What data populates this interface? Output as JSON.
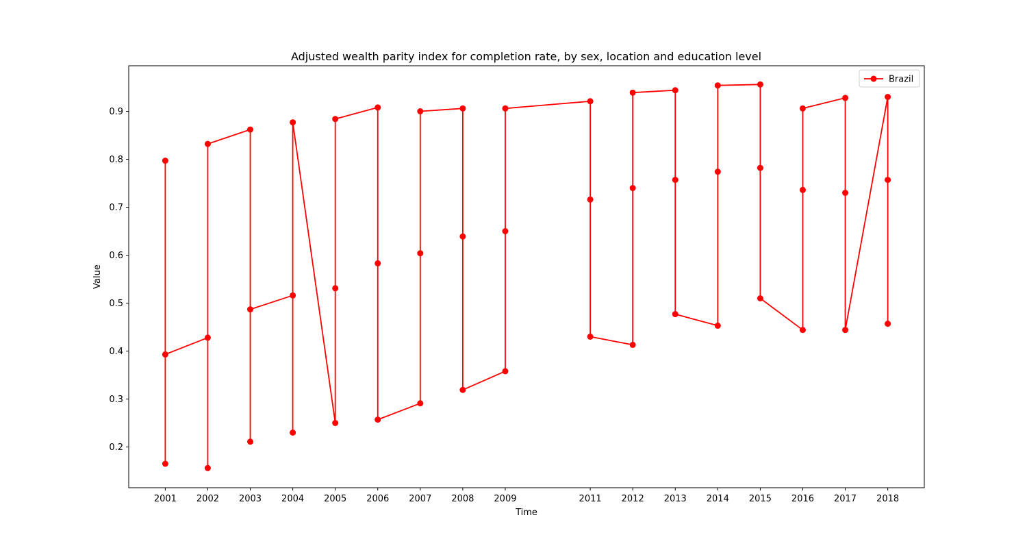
{
  "chart_data": {
    "type": "line",
    "title": "Adjusted wealth parity index for completion rate, by sex, location and education level",
    "xlabel": "Time",
    "ylabel": "Value",
    "xlim": [
      2000.14,
      2018.86
    ],
    "ylim": [
      0.115,
      0.995
    ],
    "x_ticks": [
      2001,
      2002,
      2003,
      2004,
      2005,
      2006,
      2007,
      2008,
      2009,
      2011,
      2012,
      2013,
      2014,
      2015,
      2016,
      2017,
      2018
    ],
    "y_ticks": [
      0.2,
      0.3,
      0.4,
      0.5,
      0.6,
      0.7,
      0.8,
      0.9
    ],
    "y_tick_labels": [
      "0.2",
      "0.3",
      "0.4",
      "0.5",
      "0.6",
      "0.7",
      "0.8",
      "0.9"
    ],
    "grid": false,
    "legend_position": "top-right",
    "series": [
      {
        "name": "Brazil",
        "color": "#ff0000",
        "marker": "circle",
        "points": [
          [
            2001,
            0.797
          ],
          [
            2001,
            0.165
          ],
          [
            2001,
            0.393
          ],
          [
            2002,
            0.428
          ],
          [
            2002,
            0.156
          ],
          [
            2002,
            0.832
          ],
          [
            2003,
            0.862
          ],
          [
            2003,
            0.211
          ],
          [
            2003,
            0.487
          ],
          [
            2004,
            0.516
          ],
          [
            2004,
            0.23
          ],
          [
            2004,
            0.877
          ],
          [
            2005,
            0.25
          ],
          [
            2005,
            0.531
          ],
          [
            2005,
            0.884
          ],
          [
            2006,
            0.908
          ],
          [
            2006,
            0.583
          ],
          [
            2006,
            0.257
          ],
          [
            2007,
            0.291
          ],
          [
            2007,
            0.604
          ],
          [
            2007,
            0.9
          ],
          [
            2008,
            0.906
          ],
          [
            2008,
            0.639
          ],
          [
            2008,
            0.319
          ],
          [
            2009,
            0.358
          ],
          [
            2009,
            0.65
          ],
          [
            2009,
            0.906
          ],
          [
            2011,
            0.921
          ],
          [
            2011,
            0.716
          ],
          [
            2011,
            0.43
          ],
          [
            2012,
            0.413
          ],
          [
            2012,
            0.74
          ],
          [
            2012,
            0.939
          ],
          [
            2013,
            0.944
          ],
          [
            2013,
            0.757
          ],
          [
            2013,
            0.477
          ],
          [
            2014,
            0.453
          ],
          [
            2014,
            0.774
          ],
          [
            2014,
            0.954
          ],
          [
            2015,
            0.956
          ],
          [
            2015,
            0.782
          ],
          [
            2015,
            0.51
          ],
          [
            2016,
            0.444
          ],
          [
            2016,
            0.736
          ],
          [
            2016,
            0.906
          ],
          [
            2017,
            0.928
          ],
          [
            2017,
            0.73
          ],
          [
            2017,
            0.444
          ],
          [
            2018,
            0.93
          ],
          [
            2018,
            0.757
          ],
          [
            2018,
            0.457
          ]
        ]
      }
    ]
  }
}
